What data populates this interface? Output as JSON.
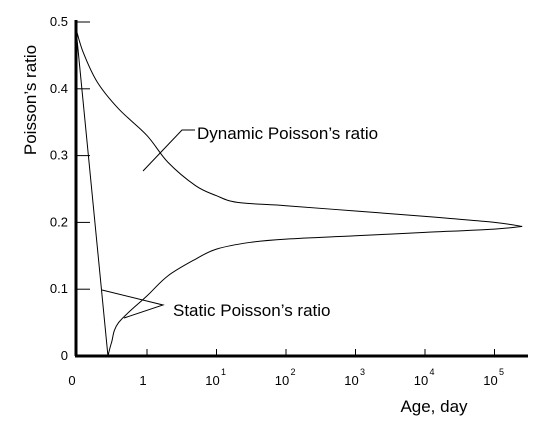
{
  "chart_data": {
    "type": "line",
    "title": "",
    "xlabel": "Age, day",
    "ylabel": "Poisson’s ratio",
    "x_scale": "log (after 1 day)",
    "xlim": [
      0,
      250000
    ],
    "ylim": [
      0,
      0.5
    ],
    "grid": false,
    "legend": "none",
    "y_ticks": [
      "0",
      "0.1",
      "0.2",
      "0.3",
      "0.4",
      "0.5"
    ],
    "x_ticks": [
      {
        "base": "0",
        "exp": ""
      },
      {
        "base": "1",
        "exp": ""
      },
      {
        "base": "10",
        "exp": "1"
      },
      {
        "base": "10",
        "exp": "2"
      },
      {
        "base": "10",
        "exp": "3"
      },
      {
        "base": "10",
        "exp": "4"
      },
      {
        "base": "10",
        "exp": "5"
      }
    ],
    "annotations": {
      "dynamic": "Dynamic Poisson’s ratio",
      "static": "Static Poisson’s ratio"
    },
    "series": [
      {
        "name": "Dynamic Poisson’s ratio",
        "x": [
          0,
          0.1,
          0.3,
          0.6,
          1,
          2,
          5,
          10,
          20,
          100,
          1000,
          10000,
          100000,
          250000
        ],
        "y": [
          0.49,
          0.455,
          0.41,
          0.37,
          0.33,
          0.29,
          0.255,
          0.24,
          0.23,
          0.225,
          0.217,
          0.209,
          0.2,
          0.194
        ]
      },
      {
        "name": "Static Poisson’s ratio",
        "x": [
          0,
          0.45,
          0.5,
          0.6,
          1,
          2,
          5,
          10,
          30,
          100,
          1000,
          10000,
          100000,
          250000
        ],
        "y": [
          0.49,
          0,
          0.02,
          0.05,
          0.09,
          0.12,
          0.145,
          0.16,
          0.17,
          0.175,
          0.18,
          0.185,
          0.19,
          0.194
        ]
      }
    ]
  }
}
